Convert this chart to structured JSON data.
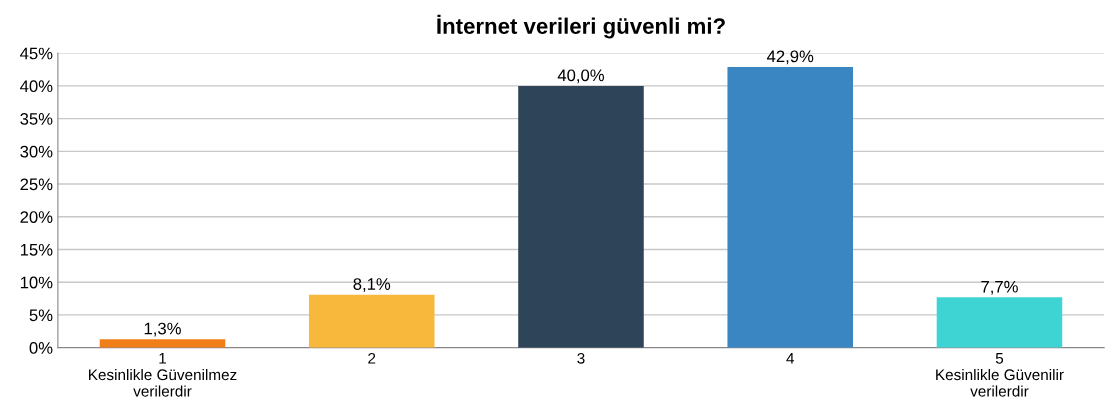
{
  "chart_data": {
    "type": "bar",
    "title": "İnternet verileri güvenli mi?",
    "categories": [
      "1\nKesinlikle Güvenilmez\nverilerdir",
      "2",
      "3",
      "4",
      "5\nKesinlikle Güvenilir\nverilerdir"
    ],
    "values": [
      1.3,
      8.1,
      40.0,
      42.9,
      7.7
    ],
    "colors": [
      "#f07f19",
      "#f7b83c",
      "#2e4559",
      "#3a86c2",
      "#3fd4d4"
    ],
    "value_labels": [
      "1,3%",
      "8,1%",
      "40,0%",
      "42,9%",
      "7,7%"
    ],
    "ylim": [
      0,
      45
    ],
    "yticks": [
      {
        "value": 0,
        "label": "0%"
      },
      {
        "value": 5,
        "label": "5%"
      },
      {
        "value": 10,
        "label": "10%"
      },
      {
        "value": 15,
        "label": "15%"
      },
      {
        "value": 20,
        "label": "20%"
      },
      {
        "value": 25,
        "label": "25%"
      },
      {
        "value": 30,
        "label": "30%"
      },
      {
        "value": 35,
        "label": "35%"
      },
      {
        "value": 40,
        "label": "40%"
      },
      {
        "value": 45,
        "label": "45%"
      }
    ],
    "grid": "y"
  }
}
